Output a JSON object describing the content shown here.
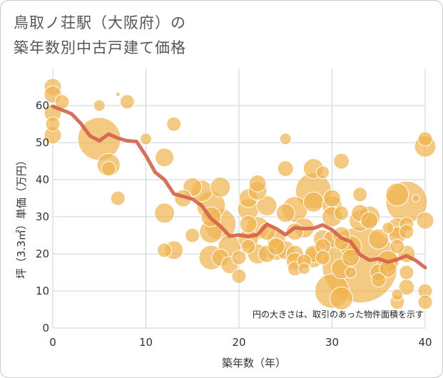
{
  "title": {
    "line1": "鳥取ノ荘駅（大阪府）の",
    "line2": "築年数別中古戸建て価格"
  },
  "colors": {
    "bubble": "#f0b450",
    "bubble_stroke": "#ffffff",
    "line": "#d4604a",
    "grid": "#c8d3e0",
    "background": "#ffffff"
  },
  "chart_data": {
    "type": "scatter",
    "title": "鳥取ノ荘駅（大阪府）の築年数別中古戸建て価格",
    "xlabel": "築年数（年）",
    "ylabel": "坪（3.3㎡）単価（万円）",
    "xlim": [
      0,
      40
    ],
    "ylim": [
      0,
      70
    ],
    "xticks": [
      0,
      10,
      20,
      30,
      40
    ],
    "yticks": [
      0,
      10,
      20,
      30,
      40,
      50,
      60
    ],
    "grid": true,
    "note": "円の大きさは、取引のあった物件面積を示す",
    "bubbles": [
      {
        "x": 0,
        "y": 65,
        "s": 1.2
      },
      {
        "x": 0,
        "y": 63,
        "s": 1.2
      },
      {
        "x": 0,
        "y": 58,
        "s": 1.2
      },
      {
        "x": 0,
        "y": 55,
        "s": 1.0
      },
      {
        "x": 0,
        "y": 52,
        "s": 1.2
      },
      {
        "x": 1,
        "y": 61,
        "s": 1.0
      },
      {
        "x": 5,
        "y": 60,
        "s": 0.8
      },
      {
        "x": 5,
        "y": 51,
        "s": 3.0
      },
      {
        "x": 6,
        "y": 44,
        "s": 1.6
      },
      {
        "x": 6,
        "y": 43,
        "s": 1.0
      },
      {
        "x": 7,
        "y": 35,
        "s": 1.0
      },
      {
        "x": 7,
        "y": 63,
        "s": 0.3
      },
      {
        "x": 8,
        "y": 61,
        "s": 1.0
      },
      {
        "x": 10,
        "y": 51,
        "s": 0.8
      },
      {
        "x": 12,
        "y": 46,
        "s": 1.3
      },
      {
        "x": 12,
        "y": 31,
        "s": 1.4
      },
      {
        "x": 12,
        "y": 21,
        "s": 1.0
      },
      {
        "x": 13,
        "y": 55,
        "s": 1.0
      },
      {
        "x": 13,
        "y": 21,
        "s": 1.3
      },
      {
        "x": 14,
        "y": 35,
        "s": 1.2
      },
      {
        "x": 15,
        "y": 38,
        "s": 1.3
      },
      {
        "x": 15,
        "y": 25,
        "s": 1.0
      },
      {
        "x": 16,
        "y": 37,
        "s": 1.5
      },
      {
        "x": 17,
        "y": 33,
        "s": 2.0
      },
      {
        "x": 17,
        "y": 30,
        "s": 1.4
      },
      {
        "x": 17,
        "y": 26,
        "s": 1.6
      },
      {
        "x": 17,
        "y": 19,
        "s": 1.7
      },
      {
        "x": 18,
        "y": 38,
        "s": 1.4
      },
      {
        "x": 18,
        "y": 28,
        "s": 2.2
      },
      {
        "x": 18,
        "y": 19,
        "s": 1.2
      },
      {
        "x": 19,
        "y": 22,
        "s": 1.6
      },
      {
        "x": 19,
        "y": 17,
        "s": 1.2
      },
      {
        "x": 20,
        "y": 19,
        "s": 1.0
      },
      {
        "x": 20,
        "y": 14,
        "s": 1.0
      },
      {
        "x": 21,
        "y": 35,
        "s": 1.3
      },
      {
        "x": 21,
        "y": 32,
        "s": 1.5
      },
      {
        "x": 21,
        "y": 28,
        "s": 1.2
      },
      {
        "x": 21,
        "y": 24,
        "s": 1.4
      },
      {
        "x": 21,
        "y": 22,
        "s": 1.0
      },
      {
        "x": 22,
        "y": 39,
        "s": 1.2
      },
      {
        "x": 22,
        "y": 37,
        "s": 1.3
      },
      {
        "x": 22,
        "y": 27,
        "s": 1.6
      },
      {
        "x": 22,
        "y": 20,
        "s": 1.4
      },
      {
        "x": 23,
        "y": 33,
        "s": 1.4
      },
      {
        "x": 23,
        "y": 26,
        "s": 1.2
      },
      {
        "x": 23,
        "y": 20,
        "s": 1.2
      },
      {
        "x": 24,
        "y": 24,
        "s": 1.3
      },
      {
        "x": 24,
        "y": 22,
        "s": 1.2
      },
      {
        "x": 24,
        "y": 21,
        "s": 1.4
      },
      {
        "x": 25,
        "y": 51,
        "s": 0.8
      },
      {
        "x": 25,
        "y": 43,
        "s": 1.1
      },
      {
        "x": 25,
        "y": 31,
        "s": 1.3
      },
      {
        "x": 25,
        "y": 21,
        "s": 1.3
      },
      {
        "x": 26,
        "y": 32,
        "s": 1.8
      },
      {
        "x": 26,
        "y": 26,
        "s": 1.2
      },
      {
        "x": 26,
        "y": 20,
        "s": 1.2
      },
      {
        "x": 26,
        "y": 18,
        "s": 1.2
      },
      {
        "x": 26,
        "y": 16,
        "s": 1.0
      },
      {
        "x": 27,
        "y": 18,
        "s": 1.0
      },
      {
        "x": 27,
        "y": 16,
        "s": 0.8
      },
      {
        "x": 27,
        "y": 27,
        "s": 1.4
      },
      {
        "x": 28,
        "y": 43,
        "s": 1.4
      },
      {
        "x": 28,
        "y": 37,
        "s": 2.5
      },
      {
        "x": 28,
        "y": 34,
        "s": 1.4
      },
      {
        "x": 28,
        "y": 20,
        "s": 1.2
      },
      {
        "x": 28,
        "y": 19,
        "s": 1.4
      },
      {
        "x": 29,
        "y": 42,
        "s": 0.9
      },
      {
        "x": 29,
        "y": 24,
        "s": 1.3
      },
      {
        "x": 29,
        "y": 22,
        "s": 1.1
      },
      {
        "x": 29,
        "y": 19,
        "s": 1.0
      },
      {
        "x": 30,
        "y": 35,
        "s": 1.2
      },
      {
        "x": 30,
        "y": 33,
        "s": 1.4
      },
      {
        "x": 30,
        "y": 30,
        "s": 1.4
      },
      {
        "x": 30,
        "y": 24,
        "s": 1.2
      },
      {
        "x": 30,
        "y": 10,
        "s": 2.4
      },
      {
        "x": 31,
        "y": 45,
        "s": 1.1
      },
      {
        "x": 31,
        "y": 31,
        "s": 1.0
      },
      {
        "x": 31,
        "y": 25,
        "s": 1.2
      },
      {
        "x": 31,
        "y": 23,
        "s": 1.0
      },
      {
        "x": 31,
        "y": 16,
        "s": 1.4
      },
      {
        "x": 31,
        "y": 8,
        "s": 1.6
      },
      {
        "x": 32,
        "y": 22,
        "s": 1.5
      },
      {
        "x": 32,
        "y": 19,
        "s": 1.2
      },
      {
        "x": 32,
        "y": 15,
        "s": 0.8
      },
      {
        "x": 33,
        "y": 36,
        "s": 1.0
      },
      {
        "x": 33,
        "y": 31,
        "s": 1.2
      },
      {
        "x": 33,
        "y": 29,
        "s": 1.5
      },
      {
        "x": 33,
        "y": 17,
        "s": 5.3
      },
      {
        "x": 34,
        "y": 30,
        "s": 1.5
      },
      {
        "x": 34,
        "y": 29,
        "s": 1.2
      },
      {
        "x": 35,
        "y": 24,
        "s": 1.4
      },
      {
        "x": 35,
        "y": 15,
        "s": 1.2
      },
      {
        "x": 35,
        "y": 13,
        "s": 1.0
      },
      {
        "x": 36,
        "y": 27,
        "s": 0.8
      },
      {
        "x": 36,
        "y": 18,
        "s": 1.5
      },
      {
        "x": 36,
        "y": 16,
        "s": 1.2
      },
      {
        "x": 37,
        "y": 36,
        "s": 1.6
      },
      {
        "x": 37,
        "y": 27,
        "s": 1.4
      },
      {
        "x": 37,
        "y": 25,
        "s": 1.2
      },
      {
        "x": 37,
        "y": 22,
        "s": 1.0
      },
      {
        "x": 37,
        "y": 9,
        "s": 0.8
      },
      {
        "x": 37,
        "y": 7,
        "s": 1.0
      },
      {
        "x": 38,
        "y": 34,
        "s": 2.9
      },
      {
        "x": 38,
        "y": 28,
        "s": 1.0
      },
      {
        "x": 38,
        "y": 26,
        "s": 1.0
      },
      {
        "x": 38,
        "y": 20,
        "s": 1.2
      },
      {
        "x": 38,
        "y": 15,
        "s": 1.0
      },
      {
        "x": 38,
        "y": 11,
        "s": 1.1
      },
      {
        "x": 39,
        "y": 35,
        "s": 0.5
      },
      {
        "x": 40,
        "y": 51,
        "s": 1.0
      },
      {
        "x": 40,
        "y": 49,
        "s": 1.5
      },
      {
        "x": 40,
        "y": 29,
        "s": 1.2
      },
      {
        "x": 40,
        "y": 10,
        "s": 1.0
      },
      {
        "x": 40,
        "y": 7,
        "s": 1.0
      }
    ],
    "trend": {
      "x": [
        0,
        1,
        2,
        3,
        4,
        5,
        6,
        7,
        8,
        9,
        10,
        11,
        12,
        13,
        14,
        15,
        16,
        17,
        18,
        19,
        20,
        21,
        22,
        23,
        24,
        25,
        26,
        27,
        28,
        29,
        30,
        31,
        32,
        33,
        34,
        35,
        36,
        37,
        38,
        39,
        40
      ],
      "y": [
        59.8,
        58.8,
        57.8,
        55.2,
        51.8,
        50.5,
        52.3,
        51.2,
        50.5,
        50.3,
        46.5,
        42.0,
        40.0,
        36.2,
        35.5,
        34.8,
        33.0,
        29.5,
        27.5,
        24.8,
        25.1,
        24.7,
        25.2,
        28.0,
        26.8,
        25.2,
        27.1,
        26.8,
        26.9,
        27.8,
        26.5,
        24.3,
        23.3,
        19.8,
        18.3,
        18.7,
        17.8,
        18.5,
        19.5,
        18.2,
        16.3
      ]
    }
  }
}
